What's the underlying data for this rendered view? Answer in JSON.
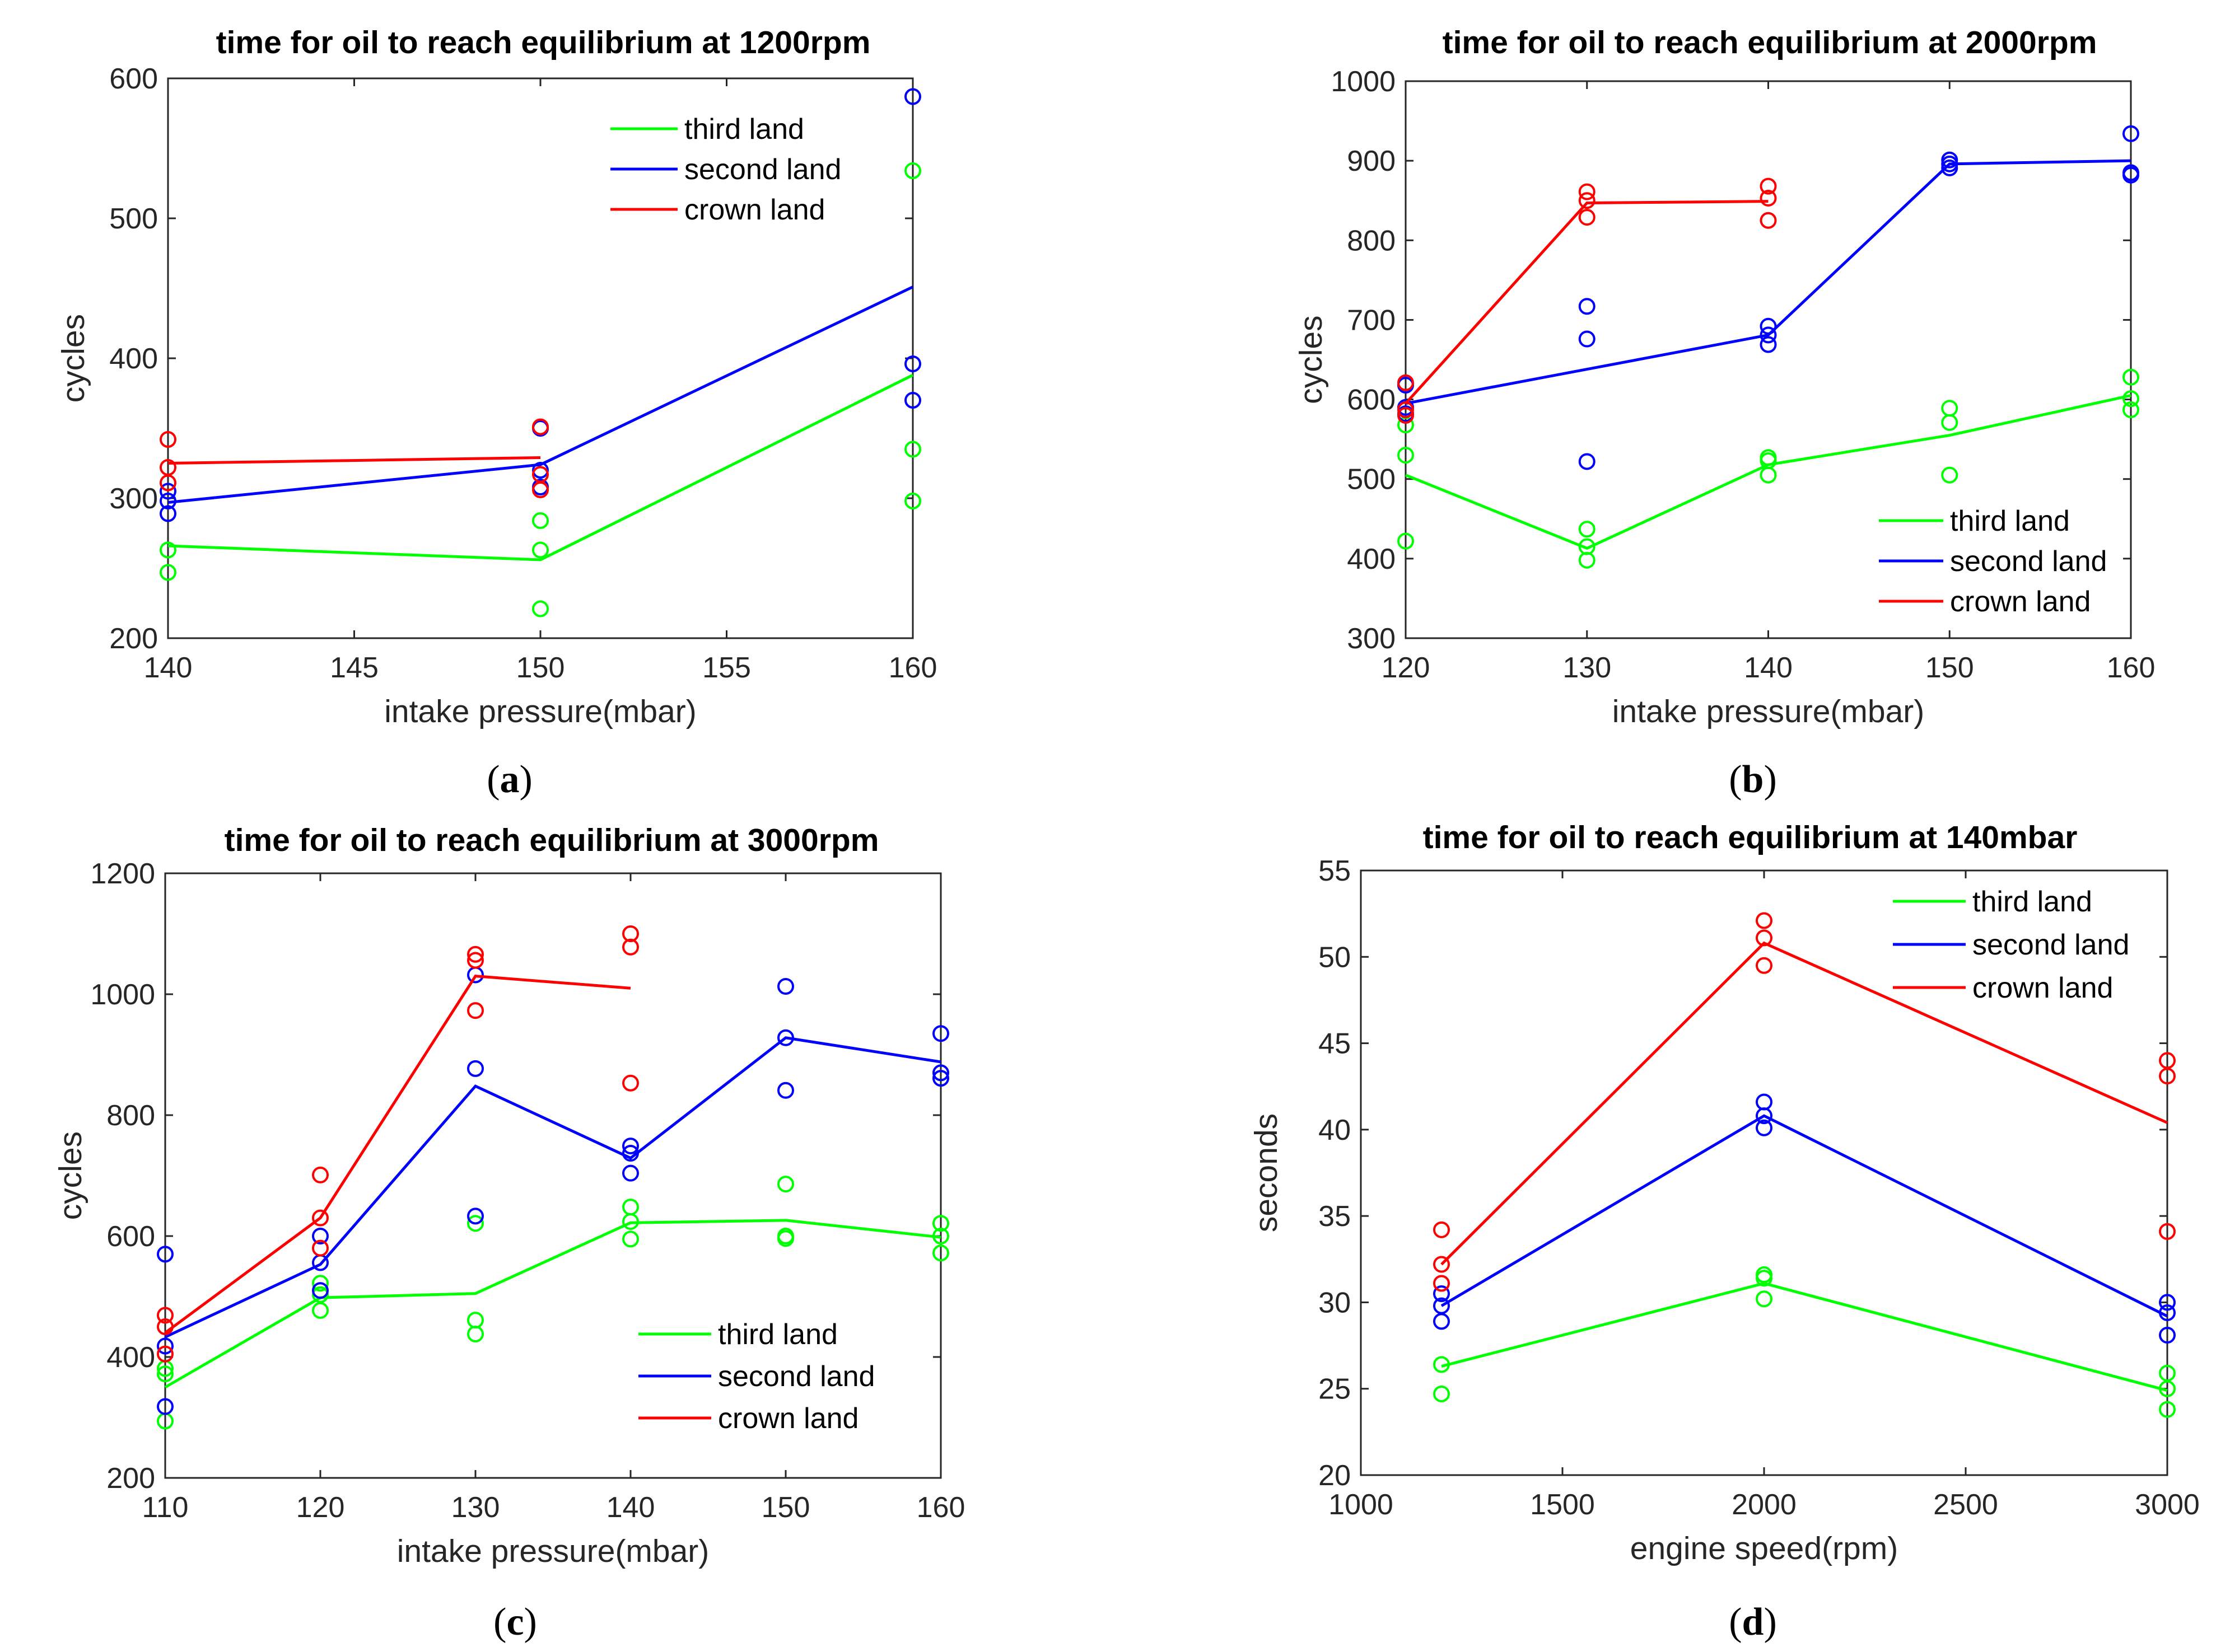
{
  "colors": {
    "third": "#00ff00",
    "second": "#0000ff",
    "crown": "#ff0000",
    "axis": "#262626"
  },
  "chart_data": [
    {
      "id": "a",
      "type": "line",
      "caption": "a",
      "title": "time for oil to reach equilibrium at 1200rpm",
      "xlabel": "intake pressure(mbar)",
      "ylabel": "cycles",
      "xlim": [
        140,
        160
      ],
      "ylim": [
        200,
        600
      ],
      "xticks": [
        140,
        145,
        150,
        155,
        160
      ],
      "yticks": [
        200,
        300,
        400,
        500,
        600
      ],
      "legend_position": "top-right",
      "series": [
        {
          "name": "third land",
          "color_key": "third",
          "line": [
            [
              140,
              266
            ],
            [
              150,
              256
            ],
            [
              160,
              388
            ]
          ],
          "points": [
            [
              140,
              263
            ],
            [
              140,
              247
            ],
            [
              150,
              284
            ],
            [
              150,
              263
            ],
            [
              150,
              221
            ],
            [
              160,
              534
            ],
            [
              160,
              335
            ],
            [
              160,
              298
            ]
          ]
        },
        {
          "name": "second land",
          "color_key": "second",
          "line": [
            [
              140,
              297
            ],
            [
              150,
              324
            ],
            [
              160,
              451
            ]
          ],
          "points": [
            [
              140,
              305
            ],
            [
              140,
              298
            ],
            [
              140,
              289
            ],
            [
              150,
              350
            ],
            [
              150,
              320
            ],
            [
              150,
              308
            ],
            [
              160,
              587
            ],
            [
              160,
              396
            ],
            [
              160,
              370
            ]
          ]
        },
        {
          "name": "crown land",
          "color_key": "crown",
          "line": [
            [
              140,
              325
            ],
            [
              150,
              329
            ]
          ],
          "points": [
            [
              140,
              342
            ],
            [
              140,
              322
            ],
            [
              140,
              311
            ],
            [
              150,
              351
            ],
            [
              150,
              317
            ],
            [
              150,
              306
            ]
          ]
        }
      ]
    },
    {
      "id": "b",
      "type": "line",
      "caption": "b",
      "title": "time for oil to reach equilibrium at 2000rpm",
      "xlabel": "intake pressure(mbar)",
      "ylabel": "cycles",
      "xlim": [
        120,
        160
      ],
      "ylim": [
        300,
        1000
      ],
      "xticks": [
        120,
        130,
        140,
        150,
        160
      ],
      "yticks": [
        300,
        400,
        500,
        600,
        700,
        800,
        900,
        1000
      ],
      "legend_position": "bottom-right",
      "series": [
        {
          "name": "third land",
          "color_key": "third",
          "line": [
            [
              120,
              505
            ],
            [
              130,
              413
            ],
            [
              140,
              518
            ],
            [
              150,
              555
            ],
            [
              160,
              605
            ]
          ],
          "points": [
            [
              120,
              568
            ],
            [
              120,
              530
            ],
            [
              120,
              422
            ],
            [
              130,
              437
            ],
            [
              130,
              415
            ],
            [
              130,
              398
            ],
            [
              140,
              527
            ],
            [
              140,
              523
            ],
            [
              140,
              505
            ],
            [
              150,
              589
            ],
            [
              150,
              571
            ],
            [
              150,
              505
            ],
            [
              160,
              628
            ],
            [
              160,
              601
            ],
            [
              160,
              587
            ]
          ]
        },
        {
          "name": "second land",
          "color_key": "second",
          "line": [
            [
              120,
              595
            ],
            [
              130,
              638
            ],
            [
              140,
              681
            ],
            [
              150,
              896
            ],
            [
              160,
              900
            ]
          ],
          "points": [
            [
              120,
              618
            ],
            [
              120,
              590
            ],
            [
              120,
              582
            ],
            [
              130,
              717
            ],
            [
              130,
              676
            ],
            [
              130,
              522
            ],
            [
              140,
              692
            ],
            [
              140,
              681
            ],
            [
              140,
              669
            ],
            [
              150,
              901
            ],
            [
              150,
              896
            ],
            [
              150,
              891
            ],
            [
              160,
              934
            ],
            [
              160,
              885
            ],
            [
              160,
              882
            ]
          ]
        },
        {
          "name": "crown land",
          "color_key": "crown",
          "line": [
            [
              120,
              595
            ],
            [
              130,
              847
            ],
            [
              140,
              849
            ]
          ],
          "points": [
            [
              120,
              621
            ],
            [
              120,
              587
            ],
            [
              120,
              580
            ],
            [
              130,
              861
            ],
            [
              130,
              850
            ],
            [
              130,
              829
            ],
            [
              140,
              868
            ],
            [
              140,
              853
            ],
            [
              140,
              825
            ]
          ]
        }
      ]
    },
    {
      "id": "c",
      "type": "line",
      "caption": "c",
      "title": "time for oil to reach equilibrium at 3000rpm",
      "xlabel": "intake pressure(mbar)",
      "ylabel": "cycles",
      "xlim": [
        110,
        160
      ],
      "ylim": [
        200,
        1200
      ],
      "xticks": [
        110,
        120,
        130,
        140,
        150,
        160
      ],
      "yticks": [
        200,
        400,
        600,
        800,
        1000,
        1200
      ],
      "legend_position": "bottom-right",
      "series": [
        {
          "name": "third land",
          "color_key": "third",
          "line": [
            [
              110,
              350
            ],
            [
              120,
              498
            ],
            [
              130,
              505
            ],
            [
              140,
              622
            ],
            [
              150,
              626
            ],
            [
              160,
              598
            ]
          ],
          "points": [
            [
              110,
              381
            ],
            [
              110,
              372
            ],
            [
              110,
              294
            ],
            [
              120,
              522
            ],
            [
              120,
              503
            ],
            [
              120,
              477
            ],
            [
              130,
              621
            ],
            [
              130,
              461
            ],
            [
              130,
              438
            ],
            [
              140,
              648
            ],
            [
              140,
              624
            ],
            [
              140,
              595
            ],
            [
              150,
              686
            ],
            [
              150,
              600
            ],
            [
              150,
              596
            ],
            [
              160,
              621
            ],
            [
              160,
              600
            ],
            [
              160,
              572
            ]
          ]
        },
        {
          "name": "second land",
          "color_key": "second",
          "line": [
            [
              110,
              433
            ],
            [
              120,
              553
            ],
            [
              130,
              848
            ],
            [
              140,
              729
            ],
            [
              150,
              928
            ],
            [
              160,
              888
            ]
          ],
          "points": [
            [
              110,
              570
            ],
            [
              110,
              418
            ],
            [
              110,
              318
            ],
            [
              120,
              600
            ],
            [
              120,
              556
            ],
            [
              120,
              510
            ],
            [
              130,
              1032
            ],
            [
              130,
              877
            ],
            [
              130,
              633
            ],
            [
              140,
              749
            ],
            [
              140,
              737
            ],
            [
              140,
              704
            ],
            [
              150,
              1013
            ],
            [
              150,
              928
            ],
            [
              150,
              841
            ],
            [
              160,
              935
            ],
            [
              160,
              870
            ],
            [
              160,
              861
            ]
          ]
        },
        {
          "name": "crown land",
          "color_key": "crown",
          "line": [
            [
              110,
              440
            ],
            [
              120,
              630
            ],
            [
              130,
              1030
            ],
            [
              140,
              1010
            ]
          ],
          "points": [
            [
              110,
              469
            ],
            [
              110,
              450
            ],
            [
              110,
              405
            ],
            [
              120,
              701
            ],
            [
              120,
              630
            ],
            [
              120,
              580
            ],
            [
              130,
              1066
            ],
            [
              130,
              1056
            ],
            [
              130,
              973
            ],
            [
              140,
              1100
            ],
            [
              140,
              1078
            ],
            [
              140,
              853
            ]
          ]
        }
      ]
    },
    {
      "id": "d",
      "type": "line",
      "caption": "d",
      "title": "time for oil to reach equilibrium at 140mbar",
      "xlabel": "engine speed(rpm)",
      "ylabel": "seconds",
      "xlim": [
        1000,
        3000
      ],
      "ylim": [
        20,
        55
      ],
      "xticks": [
        1000,
        1500,
        2000,
        2500,
        3000
      ],
      "yticks": [
        20,
        25,
        30,
        35,
        40,
        45,
        50,
        55
      ],
      "legend_position": "top-right",
      "series": [
        {
          "name": "third land",
          "color_key": "third",
          "line": [
            [
              1200,
              26.3
            ],
            [
              2000,
              31.1
            ],
            [
              3000,
              24.9
            ]
          ],
          "points": [
            [
              1200,
              26.4
            ],
            [
              1200,
              24.7
            ],
            [
              2000,
              31.6
            ],
            [
              2000,
              31.4
            ],
            [
              2000,
              30.2
            ],
            [
              3000,
              25.9
            ],
            [
              3000,
              25.0
            ],
            [
              3000,
              23.8
            ]
          ]
        },
        {
          "name": "second land",
          "color_key": "second",
          "line": [
            [
              1200,
              29.8
            ],
            [
              2000,
              40.8
            ],
            [
              3000,
              29.2
            ]
          ],
          "points": [
            [
              1200,
              30.5
            ],
            [
              1200,
              29.8
            ],
            [
              1200,
              28.9
            ],
            [
              2000,
              41.6
            ],
            [
              2000,
              40.8
            ],
            [
              2000,
              40.1
            ],
            [
              3000,
              30.0
            ],
            [
              3000,
              29.4
            ],
            [
              3000,
              28.1
            ]
          ]
        },
        {
          "name": "crown land",
          "color_key": "crown",
          "line": [
            [
              1200,
              32.2
            ],
            [
              2000,
              50.8
            ],
            [
              3000,
              40.4
            ]
          ],
          "points": [
            [
              1200,
              34.2
            ],
            [
              1200,
              32.2
            ],
            [
              1200,
              31.1
            ],
            [
              2000,
              52.1
            ],
            [
              2000,
              51.1
            ],
            [
              2000,
              49.5
            ],
            [
              3000,
              44.0
            ],
            [
              3000,
              43.1
            ],
            [
              3000,
              34.1
            ]
          ]
        }
      ]
    }
  ]
}
